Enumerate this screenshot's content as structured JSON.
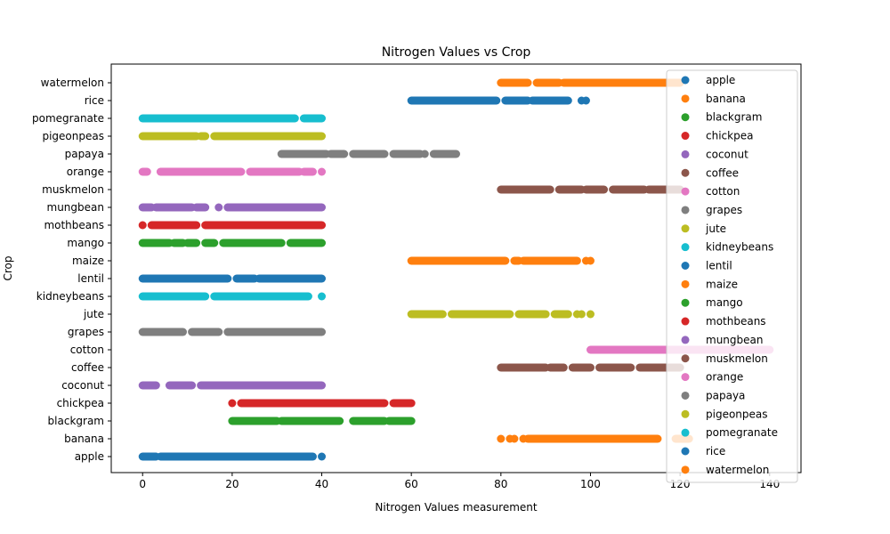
{
  "chart_data": {
    "type": "scatter",
    "title": "Nitrogen Values vs Crop",
    "xlabel": "Nitrogen Values measurement",
    "ylabel": "Crop",
    "xlim": [
      -7,
      147
    ],
    "x_ticks": [
      0,
      20,
      40,
      60,
      80,
      100,
      120,
      140
    ],
    "categories": [
      "apple",
      "banana",
      "blackgram",
      "chickpea",
      "coconut",
      "coffee",
      "cotton",
      "grapes",
      "jute",
      "kidneybeans",
      "lentil",
      "maize",
      "mango",
      "mothbeans",
      "mungbean",
      "muskmelon",
      "orange",
      "papaya",
      "pigeonpeas",
      "pomegranate",
      "rice",
      "watermelon"
    ],
    "legend_position": "upper right",
    "grid": false,
    "series": [
      {
        "name": "apple",
        "color": "#1f77b4",
        "ranges": [
          [
            0,
            3
          ],
          [
            4,
            38
          ]
        ],
        "points": [
          40
        ]
      },
      {
        "name": "banana",
        "color": "#ff7f0e",
        "ranges": [
          [
            86,
            115
          ],
          [
            119,
            122
          ]
        ],
        "points": [
          80,
          82,
          83,
          85
        ]
      },
      {
        "name": "blackgram",
        "color": "#2ca02c",
        "ranges": [
          [
            20,
            30
          ],
          [
            31,
            44
          ],
          [
            47,
            54
          ],
          [
            55,
            60
          ]
        ],
        "points": []
      },
      {
        "name": "chickpea",
        "color": "#d62728",
        "ranges": [
          [
            22,
            54
          ],
          [
            56,
            60
          ]
        ],
        "points": [
          20
        ]
      },
      {
        "name": "coconut",
        "color": "#9467bd",
        "ranges": [
          [
            0,
            3
          ],
          [
            6,
            11
          ],
          [
            13,
            40
          ]
        ],
        "points": []
      },
      {
        "name": "coffee",
        "color": "#8c564b",
        "ranges": [
          [
            80,
            90
          ],
          [
            91,
            94
          ],
          [
            96,
            100
          ],
          [
            102,
            109
          ],
          [
            111,
            120
          ]
        ],
        "points": []
      },
      {
        "name": "cotton",
        "color": "#e377c2",
        "ranges": [
          [
            100,
            140
          ]
        ],
        "points": []
      },
      {
        "name": "grapes",
        "color": "#7f7f7f",
        "ranges": [
          [
            0,
            9
          ],
          [
            11,
            17
          ],
          [
            19,
            40
          ]
        ],
        "points": []
      },
      {
        "name": "jute",
        "color": "#bcbd22",
        "ranges": [
          [
            60,
            67
          ],
          [
            69,
            82
          ],
          [
            84,
            90
          ],
          [
            92,
            95
          ]
        ],
        "points": [
          97,
          98,
          100
        ]
      },
      {
        "name": "kidneybeans",
        "color": "#17becf",
        "ranges": [
          [
            0,
            14
          ],
          [
            16,
            37
          ]
        ],
        "points": [
          40
        ]
      },
      {
        "name": "lentil",
        "color": "#1f77b4",
        "ranges": [
          [
            0,
            19
          ],
          [
            21,
            25
          ],
          [
            26,
            40
          ]
        ],
        "points": []
      },
      {
        "name": "maize",
        "color": "#ff7f0e",
        "ranges": [
          [
            60,
            81
          ],
          [
            83,
            84
          ],
          [
            85,
            97
          ]
        ],
        "points": [
          99,
          100
        ]
      },
      {
        "name": "mango",
        "color": "#2ca02c",
        "ranges": [
          [
            0,
            6
          ],
          [
            7,
            9
          ],
          [
            10,
            12
          ],
          [
            14,
            16
          ],
          [
            18,
            31
          ],
          [
            33,
            40
          ]
        ],
        "points": []
      },
      {
        "name": "mothbeans",
        "color": "#d62728",
        "ranges": [
          [
            2,
            12
          ],
          [
            14,
            40
          ]
        ],
        "points": [
          0
        ]
      },
      {
        "name": "mungbean",
        "color": "#9467bd",
        "ranges": [
          [
            0,
            2
          ],
          [
            3,
            11
          ],
          [
            12,
            14
          ],
          [
            19,
            40
          ]
        ],
        "points": [
          17
        ]
      },
      {
        "name": "muskmelon",
        "color": "#8c564b",
        "ranges": [
          [
            80,
            91
          ],
          [
            93,
            98
          ],
          [
            99,
            103
          ],
          [
            105,
            112
          ],
          [
            113,
            120
          ]
        ],
        "points": []
      },
      {
        "name": "orange",
        "color": "#e377c2",
        "ranges": [
          [
            0,
            1
          ],
          [
            4,
            22
          ],
          [
            24,
            35
          ],
          [
            36,
            38
          ]
        ],
        "points": [
          40
        ]
      },
      {
        "name": "papaya",
        "color": "#7f7f7f",
        "ranges": [
          [
            31,
            41
          ],
          [
            42,
            45
          ],
          [
            47,
            54
          ],
          [
            56,
            62
          ],
          [
            65,
            70
          ]
        ],
        "points": [
          63
        ]
      },
      {
        "name": "pigeonpeas",
        "color": "#bcbd22",
        "ranges": [
          [
            0,
            12
          ],
          [
            13,
            14
          ],
          [
            16,
            40
          ]
        ],
        "points": []
      },
      {
        "name": "pomegranate",
        "color": "#17becf",
        "ranges": [
          [
            0,
            34
          ],
          [
            36,
            40
          ]
        ],
        "points": []
      },
      {
        "name": "rice",
        "color": "#1f77b4",
        "ranges": [
          [
            60,
            79
          ],
          [
            81,
            86
          ],
          [
            87,
            95
          ]
        ],
        "points": [
          98,
          99
        ]
      },
      {
        "name": "watermelon",
        "color": "#ff7f0e",
        "ranges": [
          [
            80,
            86
          ],
          [
            88,
            93
          ],
          [
            94,
            120
          ]
        ],
        "points": []
      }
    ]
  }
}
